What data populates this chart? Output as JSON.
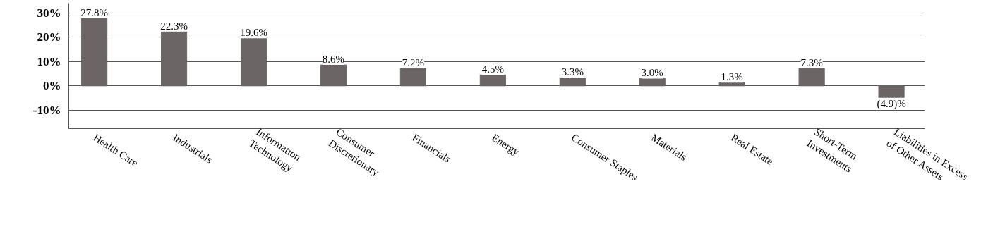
{
  "chart_data": {
    "type": "bar",
    "categories": [
      "Health Care",
      "Industrials",
      "Information\nTechnology",
      "Consumer\nDiscretionary",
      "Financials",
      "Energy",
      "Consumer Staples",
      "Materials",
      "Real Estate",
      "Short-Term\nInvestments",
      "Liabilities in Excess\nof Other Assets"
    ],
    "values": [
      27.8,
      22.3,
      19.6,
      8.6,
      7.2,
      4.5,
      3.3,
      3.0,
      1.3,
      7.3,
      -4.9
    ],
    "value_labels": [
      "27.8%",
      "22.3%",
      "19.6%",
      "8.6%",
      "7.2%",
      "4.5%",
      "3.3%",
      "3.0%",
      "1.3%",
      "7.3%",
      "(4.9)%"
    ],
    "color": "#6b6665",
    "ylim": [
      -17.6,
      34
    ],
    "yticks": [
      {
        "value": -10,
        "label": "-10%"
      },
      {
        "value": 0,
        "label": "0%"
      },
      {
        "value": 10,
        "label": "10%"
      },
      {
        "value": 20,
        "label": "20%"
      },
      {
        "value": 30,
        "label": "30%"
      }
    ],
    "grid": "y"
  }
}
